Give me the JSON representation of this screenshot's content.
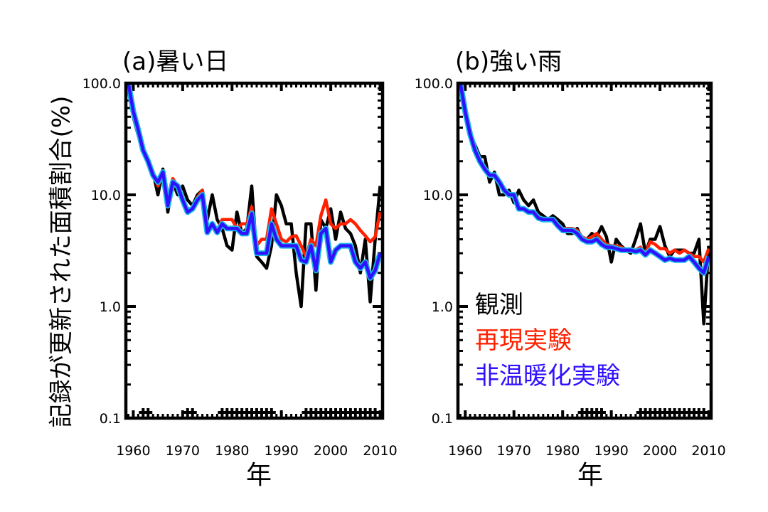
{
  "figure": {
    "ylabel": "記録が更新された面積割合(%)"
  },
  "chart_data": [
    {
      "type": "line",
      "title": "(a)暑い日",
      "xlabel": "年",
      "ylabel": "記録が更新された面積割合(%)",
      "yscale": "log",
      "xlim": [
        1958.5,
        2010.5
      ],
      "ylim": [
        0.1,
        100
      ],
      "x_ticks": [
        "1960",
        "1970",
        "1980",
        "1990",
        "2000",
        "2010"
      ],
      "y_ticks": [
        "0.1",
        "1.0",
        "10.0",
        "100.0"
      ],
      "x": [
        1959,
        1960,
        1961,
        1962,
        1963,
        1964,
        1965,
        1966,
        1967,
        1968,
        1969,
        1970,
        1971,
        1972,
        1973,
        1974,
        1975,
        1976,
        1977,
        1978,
        1979,
        1980,
        1981,
        1982,
        1983,
        1984,
        1985,
        1986,
        1987,
        1988,
        1989,
        1990,
        1991,
        1992,
        1993,
        1994,
        1995,
        1996,
        1997,
        1998,
        1999,
        2000,
        2001,
        2002,
        2003,
        2004,
        2005,
        2006,
        2007,
        2008,
        2009,
        2010
      ],
      "series": [
        {
          "name": "観測",
          "color": "#000000",
          "values": [
            100,
            50,
            34,
            26,
            19,
            16,
            10,
            17,
            7,
            13,
            10,
            12,
            9,
            8,
            10,
            11,
            6,
            10,
            6,
            5,
            3.5,
            3.2,
            7,
            4.5,
            5,
            12,
            2.8,
            2.5,
            2.2,
            3.5,
            10,
            8,
            5.5,
            5.5,
            2,
            1.0,
            5.5,
            5.5,
            1.4,
            6,
            5,
            7.5,
            4,
            7,
            5,
            4.5,
            3.5,
            2,
            4,
            1.1,
            4,
            12
          ]
        },
        {
          "name": "再現実験",
          "color": "#ff2000",
          "values": [
            100,
            56,
            38,
            25,
            20,
            16,
            12,
            15,
            8.5,
            14,
            12,
            9,
            7.5,
            7.5,
            9.5,
            11,
            4.8,
            5.5,
            4.8,
            6,
            6,
            6,
            5,
            5.5,
            5.5,
            7.8,
            3.5,
            4,
            4,
            7.5,
            5.5,
            4,
            3.8,
            4.2,
            4.3,
            3.5,
            2.8,
            4,
            3.5,
            6.5,
            9,
            5.5,
            5,
            5.5,
            5.5,
            6,
            5.5,
            4.8,
            4.3,
            3.8,
            4.2,
            7
          ]
        },
        {
          "name": "非温暖化実験",
          "color": "#3010ff",
          "values": [
            100,
            56,
            38,
            25,
            20,
            15,
            13,
            16,
            8,
            13,
            12,
            9,
            7,
            7.5,
            9,
            10,
            4.6,
            5.5,
            4.6,
            5.5,
            5,
            5,
            5,
            4.5,
            4.5,
            6.8,
            3,
            3,
            3,
            5.5,
            4,
            3.5,
            3.5,
            3.5,
            3.5,
            2.6,
            2.5,
            3.5,
            2.1,
            4.5,
            5,
            2.5,
            3.2,
            3.5,
            3.5,
            3.5,
            2.5,
            2.2,
            2.5,
            1.8,
            2.1,
            3
          ]
        }
      ],
      "markers": {
        "symbol": "+",
        "y": 0.1,
        "years": [
          1962,
          1963,
          1971,
          1972,
          1978,
          1979,
          1980,
          1981,
          1982,
          1983,
          1984,
          1985,
          1986,
          1987,
          1988,
          1995,
          1996,
          1997,
          1998,
          1999,
          2000,
          2001,
          2002,
          2003,
          2004,
          2005,
          2006,
          2007,
          2008,
          2009
        ]
      },
      "grid": false
    },
    {
      "type": "line",
      "title": "(b)強い雨",
      "xlabel": "年",
      "ylabel": "",
      "yscale": "log",
      "xlim": [
        1958.5,
        2010.5
      ],
      "ylim": [
        0.1,
        100
      ],
      "x_ticks": [
        "1960",
        "1970",
        "1980",
        "1990",
        "2000",
        "2010"
      ],
      "y_ticks": [
        "0.1",
        "1.0",
        "10.0",
        "100.0"
      ],
      "x": [
        1959,
        1960,
        1961,
        1962,
        1963,
        1964,
        1965,
        1966,
        1967,
        1968,
        1969,
        1970,
        1971,
        1972,
        1973,
        1974,
        1975,
        1976,
        1977,
        1978,
        1979,
        1980,
        1981,
        1982,
        1983,
        1984,
        1985,
        1986,
        1987,
        1988,
        1989,
        1990,
        1991,
        1992,
        1993,
        1994,
        1995,
        1996,
        1997,
        1998,
        1999,
        2000,
        2001,
        2002,
        2003,
        2004,
        2005,
        2006,
        2007,
        2008,
        2009,
        2010
      ],
      "series": [
        {
          "name": "観測",
          "color": "#000000",
          "values": [
            100,
            55,
            35,
            28,
            22,
            22,
            13,
            16,
            10,
            10,
            11,
            8.5,
            11,
            9,
            8,
            9,
            7,
            6.5,
            6,
            6.5,
            6,
            5.5,
            4.5,
            4.5,
            5,
            4,
            4,
            4.5,
            4.2,
            5.2,
            4.2,
            2.5,
            4,
            3.5,
            3.2,
            3,
            4,
            5.5,
            3,
            4,
            4,
            5.2,
            3.5,
            2.8,
            3.2,
            3.2,
            3.2,
            3,
            3,
            4,
            0.7,
            3.5
          ]
        },
        {
          "name": "再現実験",
          "color": "#ff2000",
          "values": [
            100,
            55,
            35,
            25,
            20,
            17,
            15,
            15,
            13,
            11,
            10,
            10,
            7.5,
            7.5,
            7,
            7,
            6.5,
            6,
            6,
            6,
            5.5,
            5,
            5,
            5,
            4.8,
            4.2,
            4,
            4.2,
            4.5,
            4,
            3.6,
            3.5,
            3.5,
            3.4,
            3.2,
            3.2,
            3.2,
            3.4,
            3,
            3.8,
            3.6,
            3.3,
            3.3,
            3,
            3.2,
            3,
            3.2,
            3,
            2.8,
            2.8,
            2.5,
            3.3
          ]
        },
        {
          "name": "非温暖化実験",
          "color": "#3010ff",
          "values": [
            100,
            55,
            35,
            25,
            20,
            17,
            15,
            15,
            13,
            11,
            10,
            10,
            7.5,
            7.5,
            7,
            7,
            6.2,
            6,
            6,
            6,
            5.3,
            4.8,
            4.8,
            4.8,
            4.5,
            4,
            3.8,
            3.8,
            4,
            3.6,
            3.4,
            3.4,
            3.3,
            3.2,
            3.2,
            3.2,
            3.1,
            3.2,
            2.9,
            3.2,
            3,
            2.8,
            2.6,
            2.7,
            2.6,
            2.6,
            2.6,
            2.8,
            2.5,
            2.2,
            2.0,
            2.8
          ]
        }
      ],
      "markers": {
        "symbol": "+",
        "y": 0.1,
        "years": [
          1984,
          1985,
          1986,
          1987,
          1988,
          1996,
          1997,
          1998,
          1999,
          2000,
          2001,
          2002,
          2003,
          2004,
          2005,
          2006,
          2007,
          2008,
          2009
        ]
      },
      "grid": false
    }
  ],
  "legend": {
    "placement": "panel-b-lower-right",
    "entries": [
      {
        "label": "観測",
        "color": "#000000"
      },
      {
        "label": "再現実験",
        "color": "#ff2000"
      },
      {
        "label": "非温暖化実験",
        "color": "#3010ff"
      }
    ]
  }
}
